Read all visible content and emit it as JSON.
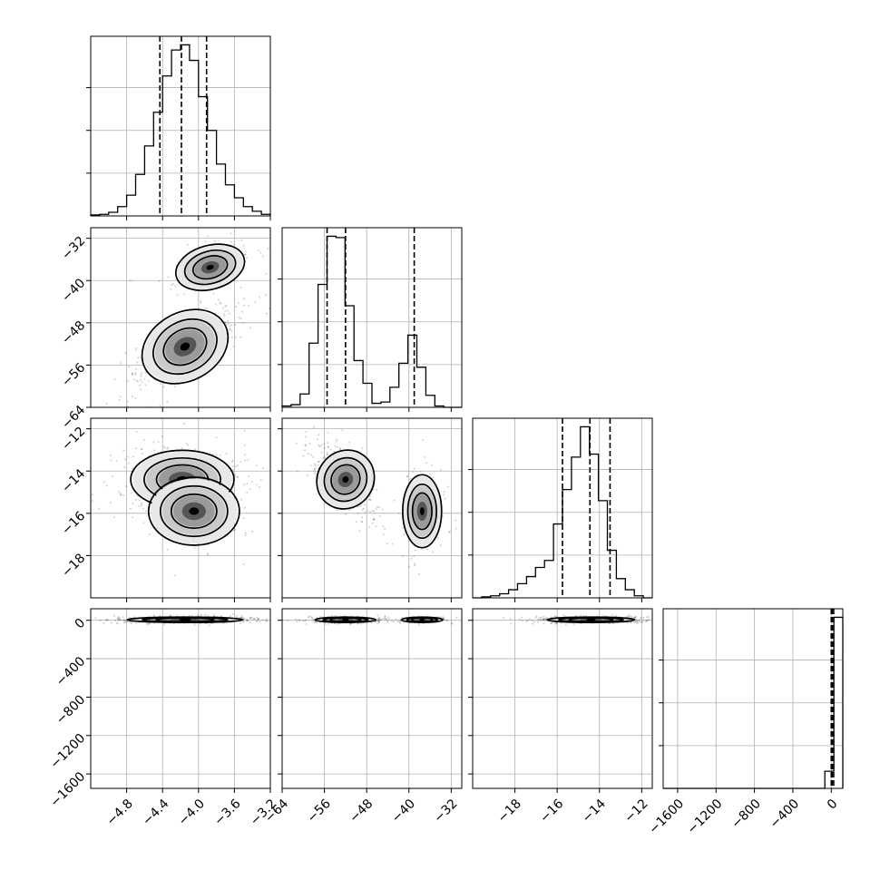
{
  "chart_data": {
    "type": "corner",
    "parameters": [
      {
        "range": [
          -5.2,
          -3.2
        ],
        "ticks": [
          -4.8,
          -4.4,
          -4.0,
          -3.6,
          -3.2
        ],
        "tick_labels": [
          "−4.8",
          "−4.4",
          "−4.0",
          "−3.6",
          "−3.2"
        ],
        "quantiles": [
          -4.43,
          -4.19,
          -3.91
        ]
      },
      {
        "range": [
          -64,
          -30
        ],
        "ticks": [
          -64,
          -56,
          -48,
          -40,
          -32
        ],
        "tick_labels": [
          "−64",
          "−56",
          "−48",
          "−40",
          "−32"
        ],
        "quantiles": [
          -55.5,
          -52.0,
          -39.0
        ]
      },
      {
        "range": [
          -20,
          -11.5
        ],
        "ticks": [
          -18,
          -16,
          -14,
          -12
        ],
        "tick_labels": [
          "−18",
          "−16",
          "−14",
          "−12"
        ],
        "quantiles": [
          -15.75,
          -14.45,
          -13.5
        ]
      },
      {
        "range": [
          -1750,
          120
        ],
        "ticks": [
          -1600,
          -1200,
          -800,
          -400,
          0
        ],
        "tick_labels": [
          "−1600",
          "−1200",
          "−800",
          "−400",
          "0"
        ],
        "quantiles": [
          0,
          10,
          25
        ]
      }
    ],
    "histograms": [
      {
        "bins": 20,
        "counts": [
          2,
          3,
          7,
          18,
          40,
          80,
          135,
          200,
          270,
          320,
          330,
          300,
          230,
          165,
          100,
          60,
          35,
          18,
          9,
          3
        ]
      },
      {
        "bins": 20,
        "counts": [
          1,
          2,
          10,
          48,
          92,
          128,
          127,
          76,
          35,
          18,
          3,
          4,
          15,
          33,
          54,
          30,
          9,
          1,
          0,
          0
        ]
      },
      {
        "bins": 20,
        "counts": [
          0,
          1,
          2,
          4,
          8,
          14,
          21,
          30,
          37,
          73,
          107,
          139,
          169,
          142,
          96,
          47,
          19,
          8,
          2,
          0
        ]
      },
      {
        "bins": 20,
        "counts": [
          0,
          0,
          0,
          0,
          0,
          0,
          0,
          0,
          0,
          0,
          0,
          0,
          0,
          0,
          0,
          0,
          0,
          0,
          10,
          100
        ]
      }
    ],
    "pairs": [
      {
        "row": 1,
        "col": 0,
        "modes": [
          {
            "center": [
              -4.15,
              -52.5
            ],
            "sd": [
              0.22,
              2.8
            ],
            "corr": 0.75,
            "weight": 0.75
          },
          {
            "center": [
              -3.87,
              -37.5
            ],
            "sd": [
              0.17,
              1.8
            ],
            "corr": 0.45,
            "weight": 0.25
          }
        ]
      },
      {
        "row": 2,
        "col": 0,
        "modes": [
          {
            "center": [
              -4.18,
              -14.4
            ],
            "sd": [
              0.25,
              0.6
            ],
            "corr": 0.0,
            "weight": 0.8
          },
          {
            "center": [
              -4.05,
              -15.9
            ],
            "sd": [
              0.22,
              0.7
            ],
            "corr": 0.0,
            "weight": 0.2
          }
        ]
      },
      {
        "row": 2,
        "col": 1,
        "modes": [
          {
            "center": [
              -52.0,
              -14.4
            ],
            "sd": [
              2.3,
              0.62
            ],
            "corr": -0.7,
            "weight": 0.75
          },
          {
            "center": [
              -37.5,
              -15.9
            ],
            "sd": [
              1.6,
              0.75
            ],
            "corr": 0.0,
            "weight": 0.25
          }
        ]
      },
      {
        "row": 3,
        "col": 0,
        "modes": [
          {
            "center": [
              -4.15,
              5.0
            ],
            "sd": [
              0.28,
              12.0
            ],
            "corr": 0.0,
            "weight": 1.0
          }
        ]
      },
      {
        "row": 3,
        "col": 1,
        "modes": [
          {
            "center": [
              -52.0,
              5.0
            ],
            "sd": [
              2.5,
              12.0
            ],
            "corr": 0.0,
            "weight": 0.75
          },
          {
            "center": [
              -37.5,
              5.0
            ],
            "sd": [
              1.7,
              12.0
            ],
            "corr": 0.0,
            "weight": 0.25
          }
        ]
      },
      {
        "row": 3,
        "col": 2,
        "modes": [
          {
            "center": [
              -14.4,
              5.0
            ],
            "sd": [
              0.9,
              12.0
            ],
            "corr": 0.0,
            "weight": 1.0
          }
        ]
      }
    ],
    "grid": true
  }
}
